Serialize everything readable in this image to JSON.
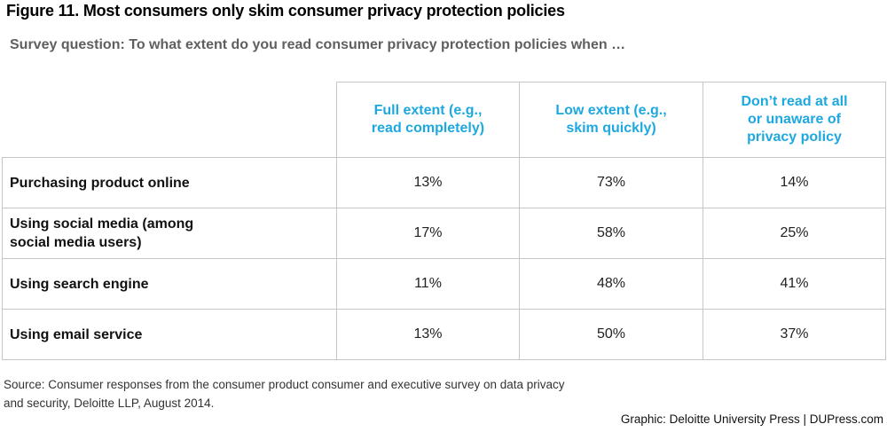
{
  "chart_data": {
    "type": "table",
    "title": "Figure 11. Most consumers only skim consumer privacy protection policies",
    "subtitle": "Survey question:  To what extent do you read consumer privacy protection policies when …",
    "columns": [
      "Full extent (e.g., read completely)",
      "Low extent (e.g., skim quickly)",
      "Don’t read at all or unaware of privacy policy"
    ],
    "rows": [
      {
        "label": "Purchasing product online",
        "values": [
          "13%",
          "73%",
          "14%"
        ]
      },
      {
        "label": "Using social media (among social media users)",
        "values": [
          "17%",
          "58%",
          "25%"
        ]
      },
      {
        "label": "Using search engine",
        "values": [
          "11%",
          "48%",
          "41%"
        ]
      },
      {
        "label": "Using email service",
        "values": [
          "13%",
          "50%",
          "37%"
        ]
      }
    ],
    "series": [
      {
        "name": "Full extent (e.g., read completely)",
        "values": [
          13,
          17,
          11,
          13
        ]
      },
      {
        "name": "Low extent (e.g., skim quickly)",
        "values": [
          73,
          58,
          48,
          50
        ]
      },
      {
        "name": "Don’t read at all or unaware of privacy policy",
        "values": [
          14,
          25,
          41,
          37
        ]
      }
    ],
    "categories": [
      "Purchasing product online",
      "Using social media (among social media users)",
      "Using search engine",
      "Using email service"
    ],
    "unit": "%"
  },
  "colors": {
    "header_accent": "#1ea8e0",
    "subtitle": "#5f5f5f",
    "grid": "#c6c6c6"
  },
  "footer": {
    "source_line1": "Source: Consumer responses from the consumer product consumer and executive survey on data privacy",
    "source_line2": "and security, Deloitte LLP, August 2014.",
    "credit": "Graphic: Deloitte University Press  |  DUPress.com"
  }
}
